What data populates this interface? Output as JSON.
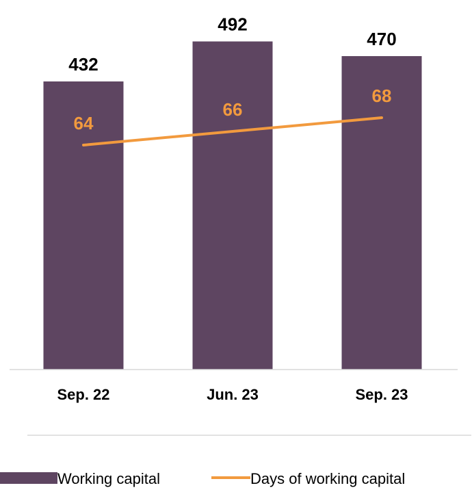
{
  "chart_data": {
    "type": "bar",
    "categories": [
      "Sep. 22",
      "Jun. 23",
      "Sep. 23"
    ],
    "series": [
      {
        "name": "Working capital",
        "kind": "bar",
        "values": [
          432,
          492,
          470
        ],
        "color": "#5e4561"
      },
      {
        "name": "Days of working capital",
        "kind": "line",
        "values": [
          64,
          66,
          68
        ],
        "color": "#f29a3e"
      }
    ],
    "title": "",
    "xlabel": "",
    "ylabel": "",
    "grid": false,
    "legend_position": "bottom"
  }
}
